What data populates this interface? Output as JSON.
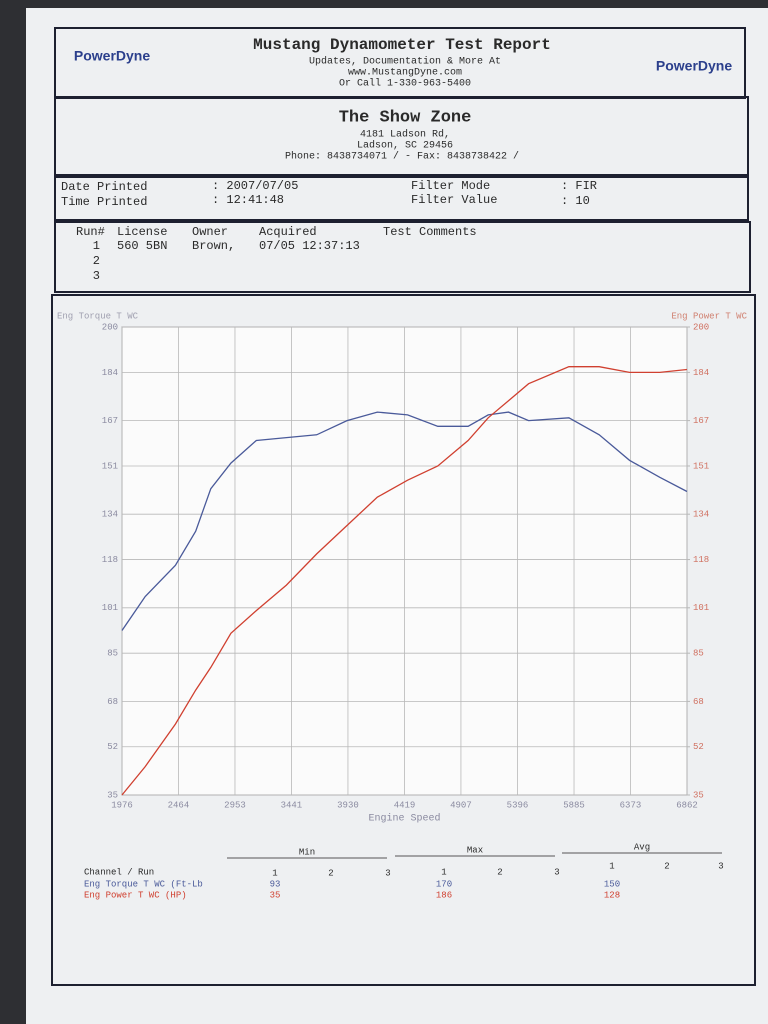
{
  "header": {
    "logo_left": "PowerDyne",
    "logo_right": "PowerDyne",
    "title": "Mustang Dynamometer Test Report",
    "lines": [
      "Updates, Documentation & More At",
      "www.MustangDyne.com",
      "Or Call 1-330-963-5400"
    ]
  },
  "shop": {
    "name": "The Show Zone",
    "lines": [
      "4181 Ladson Rd,",
      "Ladson, SC  29456",
      "Phone: 8438734071 /  - Fax: 8438738422 /"
    ]
  },
  "info": {
    "date_label": "Date Printed",
    "date": ": 2007/07/05",
    "time_label": "Time Printed",
    "time": ": 12:41:48",
    "filter_mode_label": "Filter Mode",
    "filter_mode": ": FIR",
    "filter_value_label": "Filter Value",
    "filter_value": ": 10"
  },
  "runs": {
    "columns": [
      "Run#",
      "License",
      "Owner",
      "Acquired",
      "Test Comments"
    ],
    "rows": [
      [
        "1",
        "560 5BN",
        "Brown,",
        "07/05 12:37:13"
      ],
      [
        "2"
      ],
      [
        "3"
      ]
    ]
  },
  "chart_data": {
    "type": "line",
    "y_label": "Eng Torque T WC",
    "y2_label": "Eng Power T WC",
    "x_label": "Engine Speed",
    "x": [
      1976,
      2177,
      2438,
      2613,
      2744,
      2918,
      3137,
      3398,
      3660,
      3922,
      4184,
      4446,
      4707,
      4969,
      5143,
      5318,
      5492,
      5841,
      6103,
      6365,
      6627,
      6862
    ],
    "series": [
      {
        "name": "Eng Torque T WC",
        "color": "#4a5a9a",
        "values": [
          93,
          105,
          116,
          128,
          143,
          152,
          160,
          161,
          162,
          167,
          170,
          169,
          165,
          165,
          169,
          170,
          167,
          168,
          162,
          153,
          147,
          142
        ]
      },
      {
        "name": "Eng Power T WC",
        "color": "#d04030",
        "axis": "y2",
        "values": [
          35,
          45,
          60,
          72,
          80,
          92,
          100,
          109,
          120,
          130,
          140,
          146,
          151,
          160,
          168,
          174,
          180,
          186,
          186,
          184,
          184,
          185
        ]
      }
    ],
    "xlim": [
      1976,
      6862
    ],
    "xticks": [
      1976,
      2464,
      2953,
      3441,
      3930,
      4419,
      4907,
      5396,
      5885,
      6373,
      6862
    ],
    "ylim": [
      35,
      200
    ],
    "yticks": [
      35,
      52,
      68,
      85,
      101,
      118,
      134,
      151,
      167,
      184,
      200
    ],
    "y2lim": [
      35,
      200
    ],
    "y2ticks": [
      35,
      52,
      68,
      85,
      101,
      118,
      134,
      151,
      167,
      184,
      200
    ],
    "grid": true
  },
  "summary": {
    "groups": [
      "Min",
      "Max",
      "Avg"
    ],
    "runs": [
      "1",
      "2",
      "3"
    ],
    "header": "Channel / Run",
    "rows": [
      {
        "channel": "Eng Torque T WC (Ft-Lb",
        "min": 93,
        "max": 170,
        "avg": 150
      },
      {
        "channel": "Eng Power T WC (HP)",
        "min": 35,
        "max": 186,
        "avg": 128
      }
    ]
  }
}
